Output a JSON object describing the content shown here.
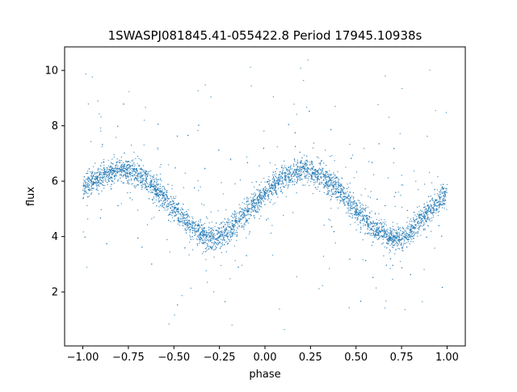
{
  "chart_data": {
    "type": "scatter",
    "title": "1SWASPJ081845.41-055422.8 Period 17945.10938s",
    "xlabel": "phase",
    "ylabel": "flux",
    "xlim": [
      -1.1,
      1.1
    ],
    "ylim": [
      0.05,
      10.85
    ],
    "xticks": [
      -1.0,
      -0.75,
      -0.5,
      -0.25,
      0.0,
      0.25,
      0.5,
      0.75,
      1.0
    ],
    "xtick_labels": [
      "−1.00",
      "−0.75",
      "−0.50",
      "−0.25",
      "0.00",
      "0.25",
      "0.50",
      "0.75",
      "1.00"
    ],
    "yticks": [
      2,
      4,
      6,
      8,
      10
    ],
    "ytick_labels": [
      "2",
      "4",
      "6",
      "8",
      "10"
    ],
    "grid": false,
    "legend": "none",
    "point_color": "#1f77b4",
    "series": [
      {
        "points_x": [
          -1.0,
          -0.9,
          -0.8,
          -0.7,
          -0.6,
          -0.5,
          -0.4,
          -0.3,
          -0.25,
          -0.2,
          -0.1,
          0.0,
          0.1,
          0.2,
          0.3,
          0.4,
          0.5,
          0.6,
          0.7,
          0.75,
          0.8,
          0.9,
          1.0
        ],
        "points_y": [
          5.8,
          6.15,
          6.4,
          6.3,
          5.7,
          5.0,
          4.3,
          3.9,
          3.95,
          4.2,
          4.9,
          5.6,
          6.1,
          6.4,
          6.25,
          5.7,
          5.0,
          4.3,
          3.9,
          3.95,
          4.2,
          4.9,
          5.6
        ]
      }
    ]
  }
}
